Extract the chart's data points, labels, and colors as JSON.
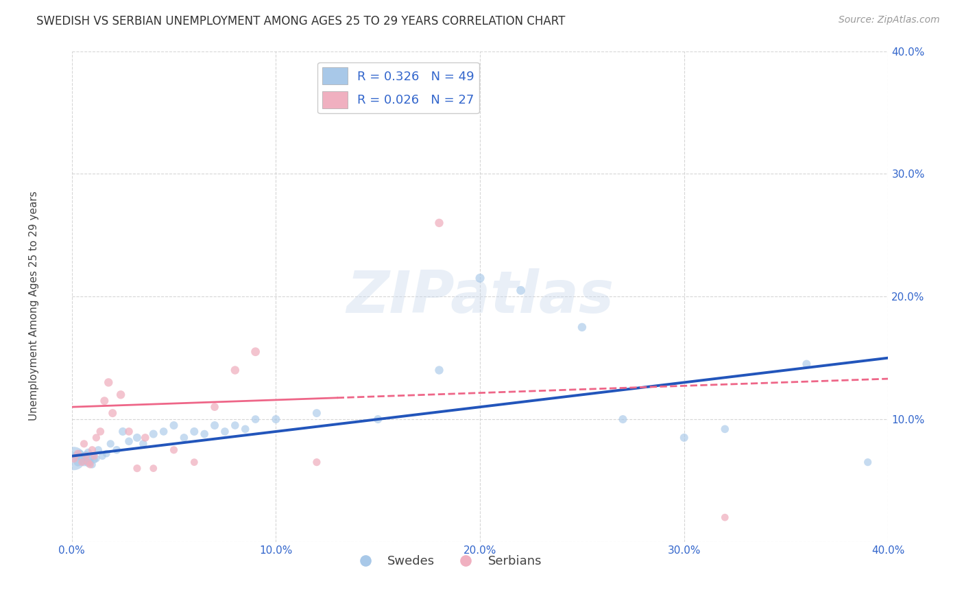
{
  "title": "SWEDISH VS SERBIAN UNEMPLOYMENT AMONG AGES 25 TO 29 YEARS CORRELATION CHART",
  "source": "Source: ZipAtlas.com",
  "ylabel": "Unemployment Among Ages 25 to 29 years",
  "xlim": [
    0,
    0.4
  ],
  "ylim": [
    0,
    0.4
  ],
  "xticks": [
    0.0,
    0.1,
    0.2,
    0.3,
    0.4
  ],
  "yticks": [
    0.0,
    0.1,
    0.2,
    0.3,
    0.4
  ],
  "swedes_color": "#A8C8E8",
  "serbians_color": "#F0B0C0",
  "trend_blue": "#2255BB",
  "trend_pink": "#EE6688",
  "legend_r_blue": "R = 0.326",
  "legend_n_blue": "N = 49",
  "legend_r_pink": "R = 0.026",
  "legend_n_pink": "N = 27",
  "watermark": "ZIPatlas",
  "swedes_x": [
    0.001,
    0.002,
    0.003,
    0.004,
    0.005,
    0.006,
    0.006,
    0.007,
    0.007,
    0.008,
    0.008,
    0.009,
    0.009,
    0.01,
    0.01,
    0.011,
    0.012,
    0.013,
    0.015,
    0.017,
    0.019,
    0.022,
    0.025,
    0.028,
    0.032,
    0.035,
    0.04,
    0.045,
    0.05,
    0.055,
    0.06,
    0.065,
    0.07,
    0.075,
    0.08,
    0.085,
    0.09,
    0.1,
    0.12,
    0.15,
    0.18,
    0.2,
    0.22,
    0.25,
    0.27,
    0.3,
    0.32,
    0.36,
    0.39
  ],
  "swedes_y": [
    0.068,
    0.07,
    0.065,
    0.072,
    0.068,
    0.065,
    0.07,
    0.066,
    0.071,
    0.064,
    0.073,
    0.065,
    0.068,
    0.063,
    0.07,
    0.067,
    0.068,
    0.075,
    0.07,
    0.072,
    0.08,
    0.075,
    0.09,
    0.082,
    0.085,
    0.08,
    0.088,
    0.09,
    0.095,
    0.085,
    0.09,
    0.088,
    0.095,
    0.09,
    0.095,
    0.092,
    0.1,
    0.1,
    0.105,
    0.1,
    0.14,
    0.215,
    0.205,
    0.175,
    0.1,
    0.085,
    0.092,
    0.145,
    0.065
  ],
  "swedes_size": [
    600,
    90,
    75,
    65,
    60,
    70,
    65,
    60,
    70,
    60,
    65,
    60,
    65,
    60,
    65,
    60,
    60,
    65,
    60,
    60,
    65,
    70,
    75,
    70,
    75,
    70,
    75,
    70,
    75,
    70,
    75,
    70,
    75,
    70,
    70,
    70,
    70,
    75,
    75,
    75,
    80,
    90,
    85,
    80,
    75,
    75,
    70,
    75,
    65
  ],
  "serbians_x": [
    0.001,
    0.003,
    0.005,
    0.006,
    0.007,
    0.008,
    0.009,
    0.01,
    0.011,
    0.012,
    0.014,
    0.016,
    0.018,
    0.02,
    0.024,
    0.028,
    0.032,
    0.036,
    0.04,
    0.05,
    0.06,
    0.07,
    0.08,
    0.09,
    0.12,
    0.18,
    0.32
  ],
  "serbians_y": [
    0.068,
    0.072,
    0.065,
    0.08,
    0.07,
    0.065,
    0.063,
    0.075,
    0.07,
    0.085,
    0.09,
    0.115,
    0.13,
    0.105,
    0.12,
    0.09,
    0.06,
    0.085,
    0.06,
    0.075,
    0.065,
    0.11,
    0.14,
    0.155,
    0.065,
    0.26,
    0.02
  ],
  "serbians_size": [
    75,
    65,
    60,
    65,
    60,
    60,
    60,
    65,
    60,
    65,
    70,
    75,
    80,
    75,
    80,
    70,
    65,
    70,
    60,
    65,
    60,
    70,
    80,
    85,
    65,
    80,
    60
  ]
}
